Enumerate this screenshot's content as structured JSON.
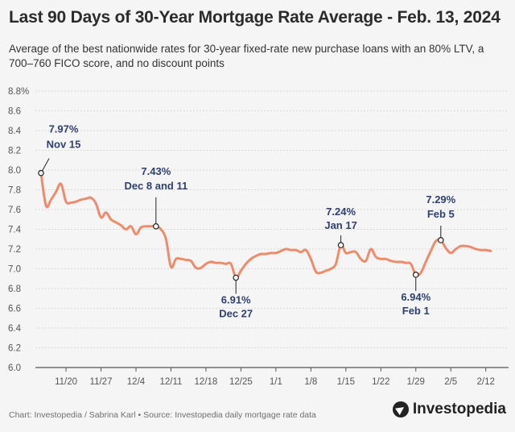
{
  "header": {
    "title": "Last 90 Days of 30-Year Mortgage Rate Average - Feb. 13, 2024",
    "subtitle": "Average of the best nationwide rates for 30-year fixed-rate new purchase loans with an 80% LTV, a 700–760 FICO score, and no discount points"
  },
  "footer": {
    "credit": "Chart: Investopedia / Sabrina Karl • Source: Investopedia daily mortgage rate data",
    "logo": "Investopedia"
  },
  "colors": {
    "line": "#ef8a6a",
    "annotation": "#2f4070",
    "grid": "#d8d8d8",
    "background": "#f5f5f5"
  },
  "chart_data": {
    "type": "line",
    "title": "Last 90 Days of 30-Year Mortgage Rate Average - Feb. 13, 2024",
    "xlabel": "",
    "ylabel": "",
    "ylim": [
      6.0,
      8.8
    ],
    "y_ticks": [
      "8.8%",
      "8.6",
      "8.4",
      "8.2",
      "8.0",
      "7.8",
      "7.6",
      "7.4",
      "7.2",
      "7.0",
      "6.8",
      "6.6",
      "6.4",
      "6.2",
      "6.0"
    ],
    "x_range": [
      0,
      91
    ],
    "x_ticks": [
      {
        "day": 5,
        "label": "11/20"
      },
      {
        "day": 12,
        "label": "11/27"
      },
      {
        "day": 19,
        "label": "12/4"
      },
      {
        "day": 26,
        "label": "12/11"
      },
      {
        "day": 33,
        "label": "12/18"
      },
      {
        "day": 40,
        "label": "12/25"
      },
      {
        "day": 47,
        "label": "1/1"
      },
      {
        "day": 54,
        "label": "1/8"
      },
      {
        "day": 61,
        "label": "1/15"
      },
      {
        "day": 68,
        "label": "1/22"
      },
      {
        "day": 75,
        "label": "1/29"
      },
      {
        "day": 82,
        "label": "2/5"
      },
      {
        "day": 89,
        "label": "2/12"
      }
    ],
    "series": [
      {
        "name": "30-Year Mortgage Rate Average",
        "x": [
          0,
          1,
          2,
          3,
          4,
          5,
          6,
          7,
          8,
          9,
          10,
          11,
          12,
          13,
          14,
          15,
          16,
          17,
          18,
          19,
          20,
          21,
          22,
          23,
          24,
          25,
          26,
          27,
          28,
          29,
          30,
          31,
          32,
          33,
          34,
          35,
          36,
          37,
          38,
          39,
          40,
          41,
          42,
          43,
          44,
          45,
          46,
          47,
          48,
          49,
          50,
          51,
          52,
          53,
          54,
          55,
          56,
          57,
          58,
          59,
          60,
          61,
          62,
          63,
          64,
          65,
          66,
          67,
          68,
          69,
          70,
          71,
          72,
          73,
          74,
          75,
          76,
          77,
          78,
          79,
          80,
          81,
          82,
          83,
          84,
          85,
          86,
          87,
          88,
          89,
          90
        ],
        "values": [
          7.97,
          7.64,
          7.7,
          7.78,
          7.86,
          7.68,
          7.67,
          7.68,
          7.7,
          7.71,
          7.72,
          7.66,
          7.52,
          7.57,
          7.5,
          7.47,
          7.44,
          7.4,
          7.43,
          7.35,
          7.42,
          7.43,
          7.43,
          7.43,
          7.4,
          7.3,
          7.02,
          7.1,
          7.1,
          7.09,
          7.08,
          7.01,
          7.01,
          7.05,
          7.07,
          7.06,
          7.06,
          7.05,
          7.05,
          6.91,
          6.98,
          7.05,
          7.1,
          7.13,
          7.15,
          7.15,
          7.16,
          7.16,
          7.18,
          7.2,
          7.19,
          7.19,
          7.17,
          7.19,
          7.1,
          6.97,
          6.96,
          6.98,
          7.0,
          7.05,
          7.24,
          7.16,
          7.17,
          7.17,
          7.1,
          7.08,
          7.2,
          7.12,
          7.1,
          7.1,
          7.08,
          7.07,
          7.07,
          7.06,
          7.05,
          6.94,
          6.96,
          7.07,
          7.18,
          7.28,
          7.29,
          7.21,
          7.16,
          7.2,
          7.23,
          7.23,
          7.22,
          7.2,
          7.19,
          7.19,
          7.18
        ]
      }
    ],
    "annotations": [
      {
        "day": 0,
        "value": 7.97,
        "rate_label": "7.97%",
        "date_label": "Nov 15"
      },
      {
        "day": 23,
        "value": 7.43,
        "rate_label": "7.43%",
        "date_label": "Dec 8 and 11"
      },
      {
        "day": 39,
        "value": 6.91,
        "rate_label": "6.91%",
        "date_label": "Dec 27"
      },
      {
        "day": 60,
        "value": 7.24,
        "rate_label": "7.24%",
        "date_label": "Jan 17"
      },
      {
        "day": 75,
        "value": 6.94,
        "rate_label": "6.94%",
        "date_label": "Feb 1"
      },
      {
        "day": 80,
        "value": 7.29,
        "rate_label": "7.29%",
        "date_label": "Feb 5"
      }
    ]
  }
}
